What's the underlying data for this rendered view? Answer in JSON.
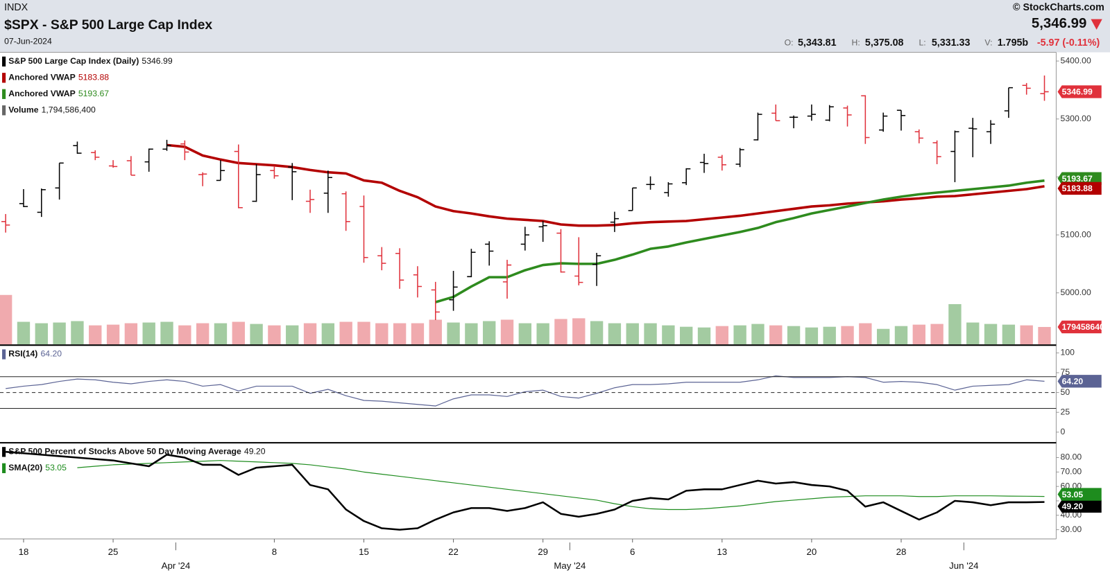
{
  "header": {
    "exchange": "INDX",
    "title": "$SPX - S&P 500 Large Cap Index",
    "date": "07-Jun-2024",
    "copyright": "© StockCharts.com",
    "last": "5,346.99",
    "quote": [
      {
        "label": "O:",
        "value": "5,343.81"
      },
      {
        "label": "H:",
        "value": "5,375.08"
      },
      {
        "label": "L:",
        "value": "5,331.33"
      },
      {
        "label": "V:",
        "value": "1.795b"
      }
    ],
    "change": "-5.97 (-0.11%)"
  },
  "chart_data": [
    {
      "type": "ohlc",
      "name": "S&P 500 Large Cap Index (Daily)",
      "categories": [
        null,
        "18",
        null,
        null,
        null,
        null,
        "25",
        null,
        null,
        null,
        null,
        null,
        null,
        null,
        null,
        "8",
        null,
        null,
        null,
        null,
        "15",
        null,
        null,
        null,
        null,
        "22",
        null,
        null,
        null,
        null,
        "29",
        null,
        null,
        null,
        null,
        "6",
        null,
        null,
        null,
        null,
        "13",
        null,
        null,
        null,
        null,
        "20",
        null,
        null,
        null,
        null,
        "28",
        null,
        null,
        null,
        null,
        null,
        null,
        null,
        null
      ],
      "month_categories": [
        null,
        null,
        null,
        null,
        null,
        null,
        null,
        null,
        null,
        null,
        "Apr '24",
        null,
        null,
        null,
        null,
        null,
        null,
        null,
        null,
        null,
        null,
        null,
        null,
        null,
        null,
        null,
        null,
        null,
        null,
        null,
        null,
        null,
        "May '24",
        null,
        null,
        null,
        null,
        null,
        null,
        null,
        null,
        null,
        null,
        null,
        null,
        null,
        null,
        null,
        null,
        null,
        null,
        null,
        null,
        null,
        "Jun '24",
        null,
        null,
        null,
        null
      ],
      "open": [
        5123,
        5154,
        5139,
        5181,
        5254,
        5242,
        5219,
        5228,
        5226,
        5248,
        5257,
        5204,
        5194,
        5244,
        5158,
        5211,
        5217,
        5158,
        5172,
        5171,
        5149,
        5064,
        5068,
        5031,
        5005,
        4988,
        5028,
        5084,
        5019,
        5084,
        5114,
        5103,
        5029,
        5049,
        5122,
        5142,
        5187,
        5173,
        5190,
        5225,
        5234,
        5222,
        5264,
        5310,
        5303,
        5305,
        5298,
        5319,
        5340,
        5281,
        5315,
        5278,
        5259,
        5244,
        5284,
        5278,
        5314,
        5358,
        5343.81
      ],
      "high": [
        5136,
        5179,
        5180,
        5224,
        5261,
        5246,
        5229,
        5236,
        5249,
        5264,
        5263,
        5208,
        5229,
        5256,
        5222,
        5219,
        5224,
        5178,
        5211,
        5175,
        5168,
        5079,
        5077,
        5046,
        5019,
        5038,
        5076,
        5089,
        5057,
        5114,
        5124,
        5110,
        5096,
        5069,
        5140,
        5181,
        5201,
        5191,
        5215,
        5240,
        5238,
        5250,
        5311,
        5325,
        5306,
        5325,
        5324,
        5323,
        5341,
        5311,
        5315,
        5282,
        5263,
        5280,
        5302,
        5298,
        5354,
        5362,
        5375.08
      ],
      "low": [
        5104,
        5148,
        5131,
        5161,
        5240,
        5229,
        5216,
        5203,
        5209,
        5245,
        5229,
        5184,
        5194,
        5146,
        5157,
        5197,
        5160,
        5138,
        5138,
        5107,
        5052,
        5039,
        5007,
        4992,
        4953,
        4969,
        5027,
        5047,
        4990,
        5073,
        5088,
        5035,
        5013,
        5012,
        5105,
        5142,
        5178,
        5166,
        5186,
        5207,
        5211,
        5217,
        5263,
        5297,
        5284,
        5297,
        5296,
        5287,
        5257,
        5278,
        5280,
        5258,
        5222,
        5191,
        5234,
        5257,
        5302,
        5342,
        5331.33
      ],
      "close": [
        5117,
        5149,
        5178,
        5224,
        5241,
        5234,
        5218,
        5203,
        5248,
        5254,
        5243,
        5205,
        5211,
        5147,
        5204,
        5202,
        5209,
        5161,
        5199,
        5123,
        5061,
        5051,
        5022,
        5011,
        4967,
        5010,
        5070,
        5072,
        5048,
        5100,
        5116,
        5036,
        5018,
        5064,
        5128,
        5181,
        5187,
        5188,
        5214,
        5223,
        5221,
        5247,
        5308,
        5297,
        5303,
        5308,
        5321,
        5307,
        5268,
        5305,
        5306,
        5267,
        5235,
        5278,
        5283,
        5291,
        5354,
        5353,
        5346.99
      ],
      "up_color": "#000000",
      "down_color": "#e0313b",
      "ylim": [
        4911,
        5415
      ],
      "yticks": [
        {
          "value": 5000,
          "label": "5000.00"
        },
        {
          "value": 5100,
          "label": "5100.00"
        },
        {
          "value": 5200,
          "label": "5200.00"
        },
        {
          "value": 5300,
          "label": "5300.00"
        },
        {
          "value": 5400,
          "label": "5400.00"
        }
      ],
      "overlays": [
        {
          "name": "Anchored VWAP",
          "color": "#b30000",
          "values": [
            null,
            null,
            null,
            null,
            null,
            null,
            null,
            null,
            null,
            5255,
            5252,
            5237,
            5230,
            5224,
            5222,
            5220,
            5217,
            5212,
            5208,
            5206,
            5194,
            5190,
            5176,
            5165,
            5149,
            5141,
            5137,
            5132,
            5128,
            5126,
            5124,
            5118,
            5116,
            5116,
            5117,
            5120,
            5122,
            5123,
            5124,
            5127,
            5130,
            5133,
            5137,
            5141,
            5145,
            5149,
            5151,
            5154,
            5156,
            5158,
            5161,
            5163,
            5166,
            5167,
            5170,
            5173,
            5176,
            5179,
            5183.88
          ]
        },
        {
          "name": "Anchored VWAP",
          "color": "#2e8b1e",
          "values": [
            null,
            null,
            null,
            null,
            null,
            null,
            null,
            null,
            null,
            null,
            null,
            null,
            null,
            null,
            null,
            null,
            null,
            null,
            null,
            null,
            null,
            null,
            null,
            null,
            4984,
            4993,
            5011,
            5027,
            5027,
            5039,
            5048,
            5051,
            5050,
            5050,
            5057,
            5066,
            5076,
            5080,
            5087,
            5093,
            5099,
            5105,
            5112,
            5122,
            5129,
            5137,
            5143,
            5149,
            5155,
            5161,
            5166,
            5170,
            5173,
            5176,
            5179,
            5182,
            5185,
            5190,
            5193.67
          ]
        }
      ],
      "volume": {
        "name": "Volume",
        "legend_value": "1,794,586,400",
        "color": "#666666",
        "up_color": "#a3cba1",
        "down_color": "#f0aaae",
        "vlim": [
          0,
          30000000000
        ],
        "values": [
          5082000000,
          2323200000,
          2178000000,
          2250600000,
          2395800000,
          1960200000,
          2032800000,
          2178000000,
          2250600000,
          2323200000,
          1960200000,
          2178000000,
          2178000000,
          2323200000,
          2105400000,
          1960200000,
          1960200000,
          2178000000,
          2178000000,
          2323200000,
          2323200000,
          2178000000,
          2178000000,
          2178000000,
          2541000000,
          2250600000,
          2178000000,
          2395800000,
          2541000000,
          2178000000,
          2178000000,
          2613600000,
          2686200000,
          2395800000,
          2178000000,
          2178000000,
          2178000000,
          1960200000,
          1815000000,
          1742400000,
          1887600000,
          1960200000,
          2105400000,
          1960200000,
          1887600000,
          1742400000,
          1815000000,
          1887600000,
          2178000000,
          1597200000,
          1887600000,
          2032800000,
          2105400000,
          4138200000,
          2250600000,
          2105400000,
          2032800000,
          1960200000,
          1794586400
        ]
      }
    },
    {
      "type": "line",
      "name": "RSI(14)",
      "color": "#5b6394",
      "legend_value": "64.20",
      "values": [
        55,
        58,
        60,
        64,
        67,
        66,
        63,
        61,
        64,
        66,
        64,
        58,
        60,
        52,
        58,
        58,
        58,
        49,
        54,
        46,
        40,
        39,
        37,
        35,
        33,
        42,
        47,
        47,
        45,
        51,
        53,
        45,
        43,
        49,
        56,
        60,
        60,
        61,
        63,
        63,
        63,
        63,
        66,
        71,
        69,
        69,
        69,
        70,
        69,
        63,
        64,
        63,
        60,
        53,
        58,
        59,
        60,
        66,
        64.2
      ],
      "ylim": [
        -12.5,
        108.9
      ],
      "yticks": [
        0,
        25,
        50,
        75,
        100
      ],
      "levels": [
        30,
        70
      ],
      "midline": 50
    },
    {
      "type": "line",
      "name": "S&P 500 Percent of Stocks Above 50 Day Moving Average",
      "color": "#000000",
      "legend_value": "49.20",
      "values": [
        84,
        83,
        82,
        81,
        80,
        79,
        78,
        76,
        74,
        82,
        80,
        75,
        75,
        68,
        73,
        74,
        75,
        61,
        58,
        44,
        36,
        31,
        30,
        31,
        37,
        42,
        45,
        45,
        43,
        45,
        49,
        41,
        39,
        41,
        44,
        50,
        52,
        51,
        57,
        58,
        58,
        61,
        64,
        62,
        63,
        61,
        60,
        57,
        46,
        49,
        43,
        37,
        42,
        50,
        49,
        47,
        49,
        49,
        49.2
      ],
      "sma": {
        "name": "SMA(20)",
        "color": "#1e8c1e",
        "values": [
          null,
          null,
          null,
          null,
          73,
          74,
          75,
          75.5,
          76,
          76.5,
          77,
          77.5,
          78,
          77.5,
          77,
          76.5,
          76,
          75,
          73.5,
          72,
          70,
          68.5,
          67,
          65.5,
          64,
          62.5,
          61,
          59.5,
          58,
          56.5,
          55,
          53.5,
          52,
          50.5,
          48,
          46,
          44.5,
          44,
          44,
          44.5,
          45.5,
          46.5,
          48,
          49.5,
          50.5,
          51.5,
          52.5,
          53,
          53.5,
          53.5,
          53.5,
          53,
          53,
          53.5,
          53.5,
          53.5,
          53.3,
          53.2,
          53.05
        ]
      },
      "ylim": [
        23.6,
        89.8
      ],
      "yticks": [
        {
          "value": 30,
          "label": "30.00"
        },
        {
          "value": 40,
          "label": "40.00"
        },
        {
          "value": 50,
          "label": "50.00"
        },
        {
          "value": 60,
          "label": "60.00"
        },
        {
          "value": 70,
          "label": "70.00"
        },
        {
          "value": 80,
          "label": "80.00"
        }
      ]
    }
  ]
}
